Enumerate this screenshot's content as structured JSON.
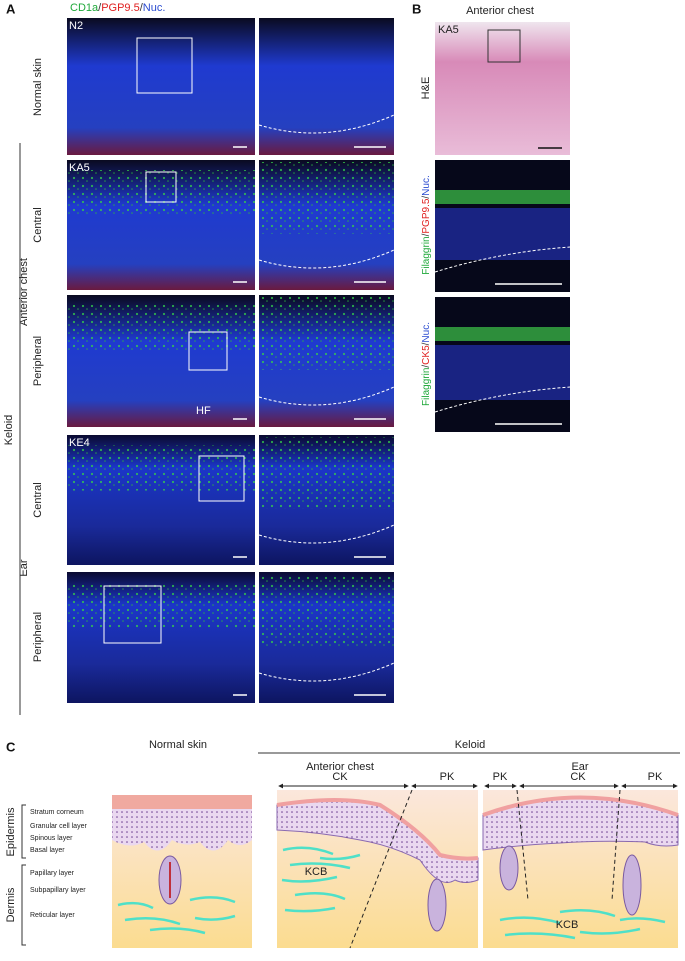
{
  "panel_a": {
    "letter": "A",
    "stain": [
      {
        "text": "CD1a",
        "color": "#1fa83a"
      },
      {
        "text": "/",
        "color": "#333333"
      },
      {
        "text": "PGP9.5",
        "color": "#e02020"
      },
      {
        "text": "/",
        "color": "#333333"
      },
      {
        "text": "Nuc.",
        "color": "#2a4bd0"
      }
    ],
    "rows": [
      {
        "label": "Normal skin",
        "sample": "N2"
      },
      {
        "label": "Central",
        "sample": "KA5"
      },
      {
        "label": "Peripheral",
        "annotation": "HF"
      },
      {
        "label": "Central",
        "sample": "KE4"
      },
      {
        "label": "Peripheral"
      }
    ],
    "groups": [
      "Anterior chest",
      "Ear"
    ],
    "keloid": "Keloid"
  },
  "panel_b": {
    "letter": "B",
    "title": "Anterior chest",
    "sample": "KA5",
    "he": "H&E",
    "stain1": [
      {
        "text": "Filaggrin",
        "color": "#1fa83a"
      },
      {
        "text": "/",
        "color": "#333333"
      },
      {
        "text": "PGP9.5",
        "color": "#e02020"
      },
      {
        "text": "/",
        "color": "#333333"
      },
      {
        "text": "Nuc.",
        "color": "#2a4bd0"
      }
    ],
    "stain2": [
      {
        "text": "Filaggrin",
        "color": "#1fa83a"
      },
      {
        "text": "/",
        "color": "#333333"
      },
      {
        "text": "CK5",
        "color": "#e02020"
      },
      {
        "text": "/",
        "color": "#333333"
      },
      {
        "text": "Nuc.",
        "color": "#2a4bd0"
      }
    ]
  },
  "panel_c": {
    "letter": "C",
    "normal_title": "Normal skin",
    "keloid_title": "Keloid",
    "sites": [
      "Anterior chest",
      "Ear"
    ],
    "regions": [
      "CK",
      "PK",
      "PK",
      "CK",
      "PK"
    ],
    "layers": [
      "Stratum corneum",
      "Granular cell layer",
      "Spinous layer",
      "Basal layer",
      "Papillary layer",
      "Subpapillary layer",
      "Reticular layer"
    ],
    "zones": [
      "Epidermis",
      "Dermis"
    ],
    "kcb": [
      "KCB",
      "KCB"
    ]
  }
}
